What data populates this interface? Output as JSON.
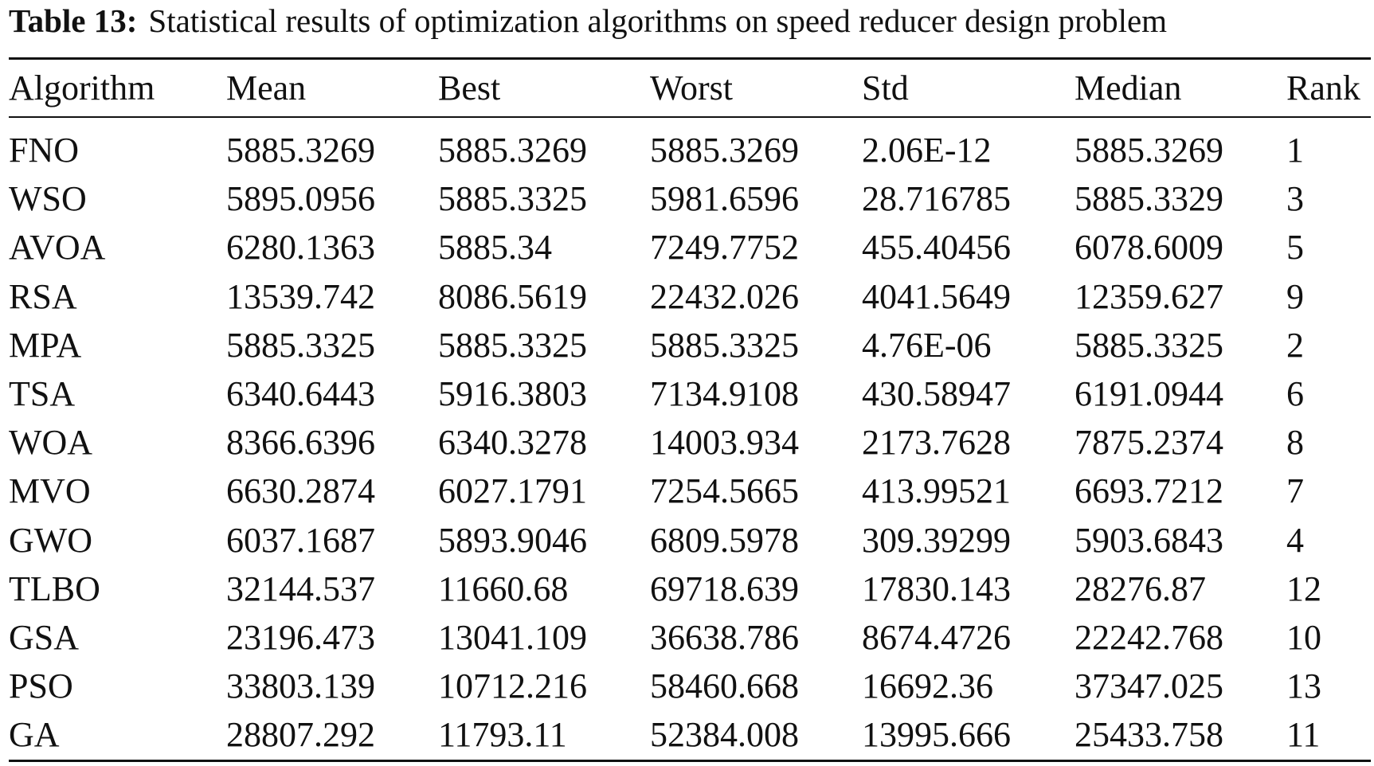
{
  "caption": {
    "label": "Table 13:",
    "text": "Statistical results of optimization algorithms on speed reducer design problem"
  },
  "table": {
    "header": [
      "Algorithm",
      "Mean",
      "Best",
      "Worst",
      "Std",
      "Median",
      "Rank"
    ],
    "rows": [
      [
        "FNO",
        "5885.3269",
        "5885.3269",
        "5885.3269",
        "2.06E-12",
        "5885.3269",
        "1"
      ],
      [
        "WSO",
        "5895.0956",
        "5885.3325",
        "5981.6596",
        "28.716785",
        "5885.3329",
        "3"
      ],
      [
        "AVOA",
        "6280.1363",
        "5885.34",
        "7249.7752",
        "455.40456",
        "6078.6009",
        "5"
      ],
      [
        "RSA",
        "13539.742",
        "8086.5619",
        "22432.026",
        "4041.5649",
        "12359.627",
        "9"
      ],
      [
        "MPA",
        "5885.3325",
        "5885.3325",
        "5885.3325",
        "4.76E-06",
        "5885.3325",
        "2"
      ],
      [
        "TSA",
        "6340.6443",
        "5916.3803",
        "7134.9108",
        "430.58947",
        "6191.0944",
        "6"
      ],
      [
        "WOA",
        "8366.6396",
        "6340.3278",
        "14003.934",
        "2173.7628",
        "7875.2374",
        "8"
      ],
      [
        "MVO",
        "6630.2874",
        "6027.1791",
        "7254.5665",
        "413.99521",
        "6693.7212",
        "7"
      ],
      [
        "GWO",
        "6037.1687",
        "5893.9046",
        "6809.5978",
        "309.39299",
        "5903.6843",
        "4"
      ],
      [
        "TLBO",
        "32144.537",
        "11660.68",
        "69718.639",
        "17830.143",
        "28276.87",
        "12"
      ],
      [
        "GSA",
        "23196.473",
        "13041.109",
        "36638.786",
        "8674.4726",
        "22242.768",
        "10"
      ],
      [
        "PSO",
        "33803.139",
        "10712.216",
        "58460.668",
        "16692.36",
        "37347.025",
        "13"
      ],
      [
        "GA",
        "28807.292",
        "11793.11",
        "52384.008",
        "13995.666",
        "25433.758",
        "11"
      ]
    ]
  }
}
